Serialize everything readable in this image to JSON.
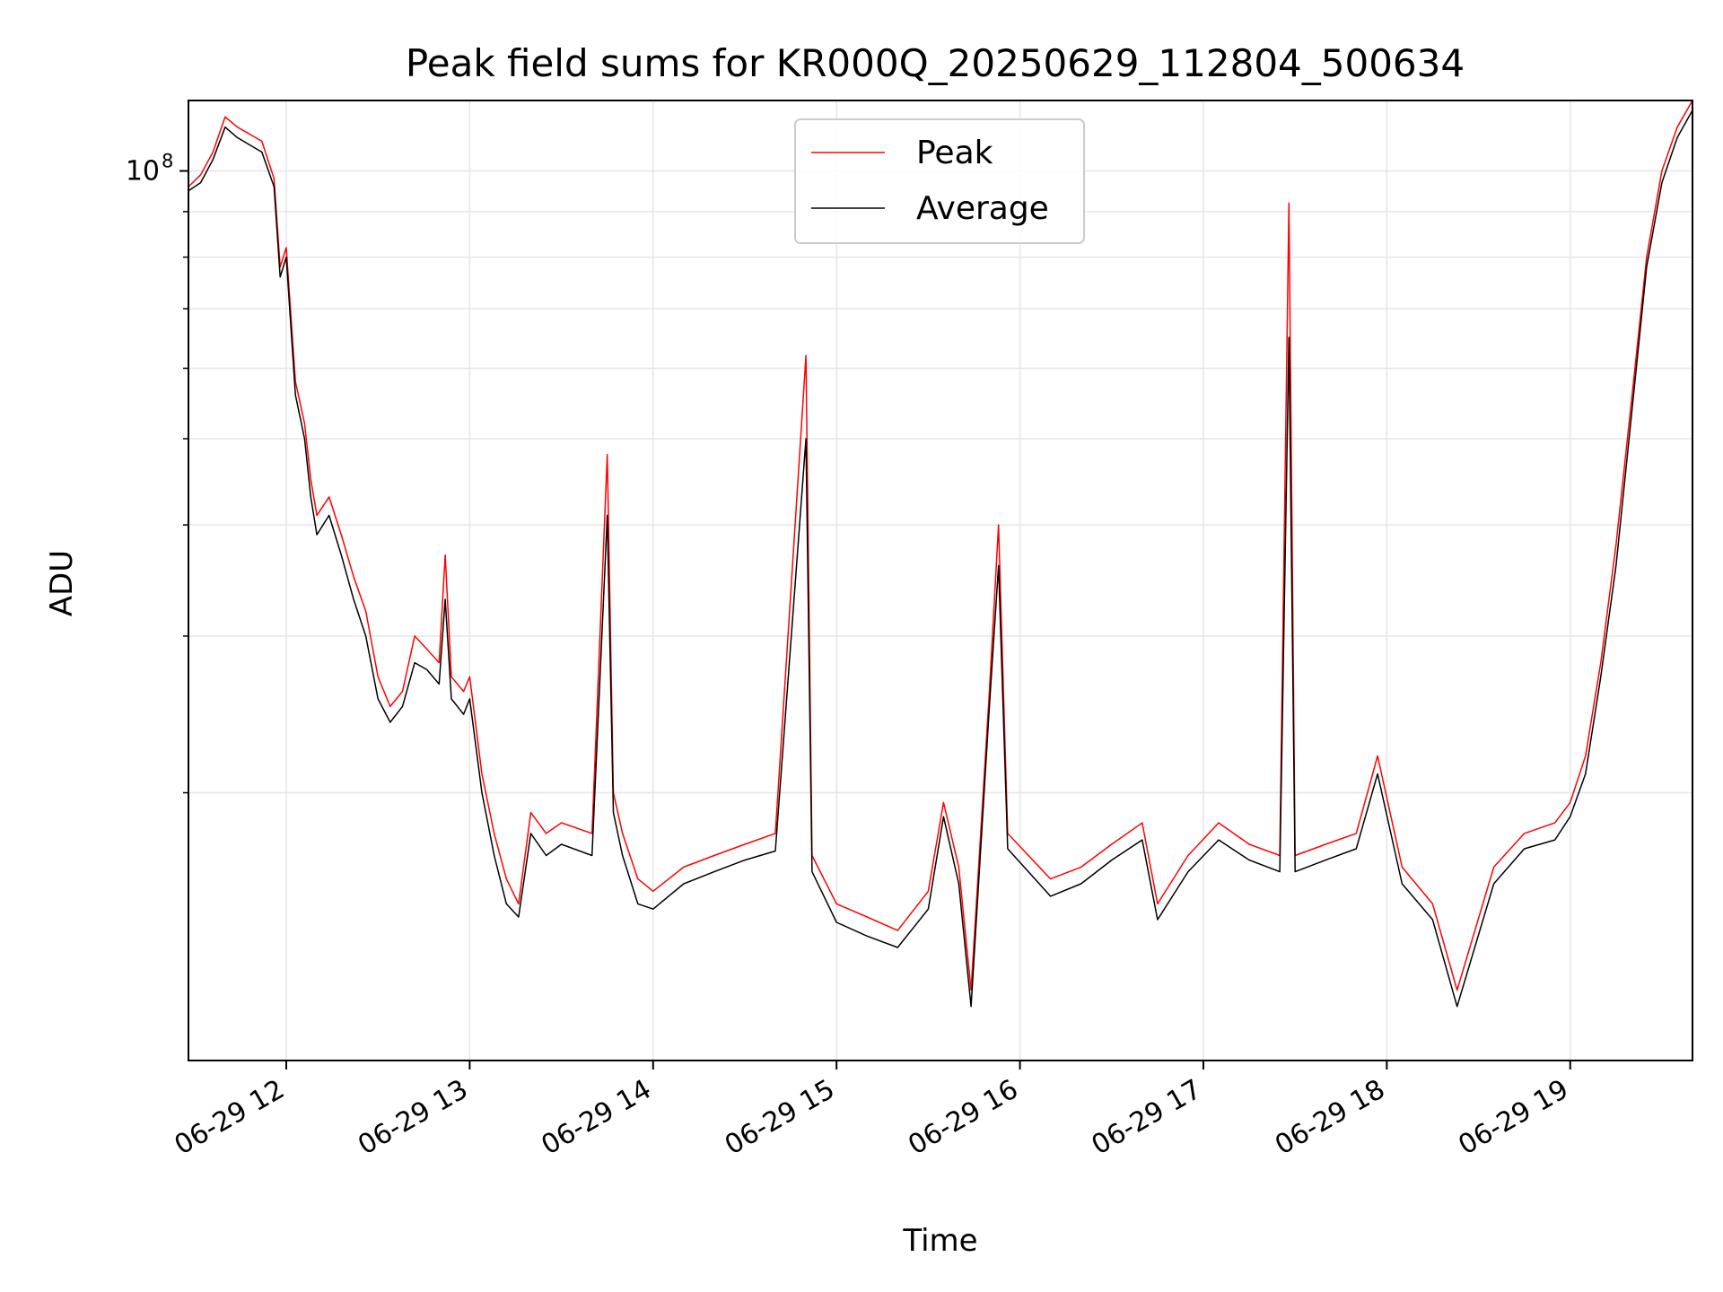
{
  "chart_data": {
    "type": "line",
    "title": "Peak field sums for KR000Q_20250629_112804_500634",
    "xlabel": "Time",
    "ylabel": "ADU",
    "x_range": [
      "2025-06-29 11:28",
      "2025-06-29 19:40"
    ],
    "x_tick_labels": [
      "06-29 12",
      "06-29 13",
      "06-29 14",
      "06-29 15",
      "06-29 16",
      "06-29 17",
      "06-29 18",
      "06-29 19"
    ],
    "y_scale": "log",
    "y_range": [
      10000000,
      120000000
    ],
    "y_tick_labels": [
      {
        "base": "10",
        "exp": "8",
        "value": 100000000
      }
    ],
    "y_minor_ticks": [
      20000000,
      30000000,
      40000000,
      50000000,
      60000000,
      70000000,
      80000000,
      90000000
    ],
    "grid": true,
    "legend_position": "upper-center",
    "colors": {
      "peak": "#ff0000",
      "average": "#000000",
      "grid": "#e6e6e6"
    },
    "series": [
      {
        "name": "Peak",
        "color": "#ff0000",
        "points": [
          [
            "2025-06-29 11:28",
            96000000
          ],
          [
            "2025-06-29 11:32",
            99000000
          ],
          [
            "2025-06-29 11:36",
            105000000
          ],
          [
            "2025-06-29 11:40",
            115000000
          ],
          [
            "2025-06-29 11:44",
            112000000
          ],
          [
            "2025-06-29 11:48",
            110000000
          ],
          [
            "2025-06-29 11:52",
            108000000
          ],
          [
            "2025-06-29 11:56",
            98000000
          ],
          [
            "2025-06-29 11:58",
            78000000
          ],
          [
            "2025-06-29 12:00",
            82000000
          ],
          [
            "2025-06-29 12:03",
            58000000
          ],
          [
            "2025-06-29 12:06",
            52000000
          ],
          [
            "2025-06-29 12:08",
            45000000
          ],
          [
            "2025-06-29 12:10",
            41000000
          ],
          [
            "2025-06-29 12:14",
            43000000
          ],
          [
            "2025-06-29 12:18",
            39000000
          ],
          [
            "2025-06-29 12:22",
            35000000
          ],
          [
            "2025-06-29 12:26",
            32000000
          ],
          [
            "2025-06-29 12:30",
            27000000
          ],
          [
            "2025-06-29 12:34",
            25000000
          ],
          [
            "2025-06-29 12:38",
            26000000
          ],
          [
            "2025-06-29 12:42",
            30000000
          ],
          [
            "2025-06-29 12:46",
            29000000
          ],
          [
            "2025-06-29 12:50",
            28000000
          ],
          [
            "2025-06-29 12:52",
            37000000
          ],
          [
            "2025-06-29 12:54",
            27000000
          ],
          [
            "2025-06-29 12:58",
            26000000
          ],
          [
            "2025-06-29 13:00",
            27000000
          ],
          [
            "2025-06-29 13:04",
            21000000
          ],
          [
            "2025-06-29 13:08",
            18000000
          ],
          [
            "2025-06-29 13:12",
            16000000
          ],
          [
            "2025-06-29 13:16",
            15000000
          ],
          [
            "2025-06-29 13:20",
            19000000
          ],
          [
            "2025-06-29 13:25",
            18000000
          ],
          [
            "2025-06-29 13:30",
            18500000
          ],
          [
            "2025-06-29 13:40",
            18000000
          ],
          [
            "2025-06-29 13:45",
            48000000
          ],
          [
            "2025-06-29 13:47",
            20000000
          ],
          [
            "2025-06-29 13:50",
            18000000
          ],
          [
            "2025-06-29 13:55",
            16000000
          ],
          [
            "2025-06-29 14:00",
            15500000
          ],
          [
            "2025-06-29 14:10",
            16500000
          ],
          [
            "2025-06-29 14:20",
            17000000
          ],
          [
            "2025-06-29 14:30",
            17500000
          ],
          [
            "2025-06-29 14:40",
            18000000
          ],
          [
            "2025-06-29 14:50",
            62000000
          ],
          [
            "2025-06-29 14:52",
            17000000
          ],
          [
            "2025-06-29 15:00",
            15000000
          ],
          [
            "2025-06-29 15:10",
            14500000
          ],
          [
            "2025-06-29 15:20",
            14000000
          ],
          [
            "2025-06-29 15:30",
            15500000
          ],
          [
            "2025-06-29 15:35",
            19500000
          ],
          [
            "2025-06-29 15:40",
            16500000
          ],
          [
            "2025-06-29 15:44",
            12000000
          ],
          [
            "2025-06-29 15:50",
            26000000
          ],
          [
            "2025-06-29 15:53",
            40000000
          ],
          [
            "2025-06-29 15:56",
            18000000
          ],
          [
            "2025-06-29 16:10",
            16000000
          ],
          [
            "2025-06-29 16:20",
            16500000
          ],
          [
            "2025-06-29 16:30",
            17500000
          ],
          [
            "2025-06-29 16:40",
            18500000
          ],
          [
            "2025-06-29 16:45",
            15000000
          ],
          [
            "2025-06-29 16:55",
            17000000
          ],
          [
            "2025-06-29 17:05",
            18500000
          ],
          [
            "2025-06-29 17:15",
            17500000
          ],
          [
            "2025-06-29 17:25",
            17000000
          ],
          [
            "2025-06-29 17:28",
            92000000
          ],
          [
            "2025-06-29 17:30",
            17000000
          ],
          [
            "2025-06-29 17:40",
            17500000
          ],
          [
            "2025-06-29 17:50",
            18000000
          ],
          [
            "2025-06-29 17:57",
            22000000
          ],
          [
            "2025-06-29 18:05",
            16500000
          ],
          [
            "2025-06-29 18:15",
            15000000
          ],
          [
            "2025-06-29 18:23",
            12000000
          ],
          [
            "2025-06-29 18:35",
            16500000
          ],
          [
            "2025-06-29 18:45",
            18000000
          ],
          [
            "2025-06-29 18:55",
            18500000
          ],
          [
            "2025-06-29 19:00",
            19500000
          ],
          [
            "2025-06-29 19:05",
            22000000
          ],
          [
            "2025-06-29 19:10",
            28000000
          ],
          [
            "2025-06-29 19:15",
            38000000
          ],
          [
            "2025-06-29 19:20",
            55000000
          ],
          [
            "2025-06-29 19:25",
            80000000
          ],
          [
            "2025-06-29 19:30",
            100000000
          ],
          [
            "2025-06-29 19:35",
            112000000
          ],
          [
            "2025-06-29 19:40",
            120000000
          ]
        ]
      },
      {
        "name": "Average",
        "color": "#000000",
        "points": [
          [
            "2025-06-29 11:28",
            95000000
          ],
          [
            "2025-06-29 11:32",
            97000000
          ],
          [
            "2025-06-29 11:36",
            103000000
          ],
          [
            "2025-06-29 11:40",
            112000000
          ],
          [
            "2025-06-29 11:44",
            109000000
          ],
          [
            "2025-06-29 11:48",
            107000000
          ],
          [
            "2025-06-29 11:52",
            105000000
          ],
          [
            "2025-06-29 11:56",
            96000000
          ],
          [
            "2025-06-29 11:58",
            76000000
          ],
          [
            "2025-06-29 12:00",
            80000000
          ],
          [
            "2025-06-29 12:03",
            56000000
          ],
          [
            "2025-06-29 12:06",
            50000000
          ],
          [
            "2025-06-29 12:08",
            43000000
          ],
          [
            "2025-06-29 12:10",
            39000000
          ],
          [
            "2025-06-29 12:14",
            41000000
          ],
          [
            "2025-06-29 12:18",
            37000000
          ],
          [
            "2025-06-29 12:22",
            33000000
          ],
          [
            "2025-06-29 12:26",
            30000000
          ],
          [
            "2025-06-29 12:30",
            25500000
          ],
          [
            "2025-06-29 12:34",
            24000000
          ],
          [
            "2025-06-29 12:38",
            25000000
          ],
          [
            "2025-06-29 12:42",
            28000000
          ],
          [
            "2025-06-29 12:46",
            27500000
          ],
          [
            "2025-06-29 12:50",
            26500000
          ],
          [
            "2025-06-29 12:52",
            33000000
          ],
          [
            "2025-06-29 12:54",
            25500000
          ],
          [
            "2025-06-29 12:58",
            24500000
          ],
          [
            "2025-06-29 13:00",
            25500000
          ],
          [
            "2025-06-29 13:04",
            20000000
          ],
          [
            "2025-06-29 13:08",
            17000000
          ],
          [
            "2025-06-29 13:12",
            15000000
          ],
          [
            "2025-06-29 13:16",
            14500000
          ],
          [
            "2025-06-29 13:20",
            18000000
          ],
          [
            "2025-06-29 13:25",
            17000000
          ],
          [
            "2025-06-29 13:30",
            17500000
          ],
          [
            "2025-06-29 13:40",
            17000000
          ],
          [
            "2025-06-29 13:45",
            41000000
          ],
          [
            "2025-06-29 13:47",
            19000000
          ],
          [
            "2025-06-29 13:50",
            17000000
          ],
          [
            "2025-06-29 13:55",
            15000000
          ],
          [
            "2025-06-29 14:00",
            14800000
          ],
          [
            "2025-06-29 14:10",
            15800000
          ],
          [
            "2025-06-29 14:20",
            16300000
          ],
          [
            "2025-06-29 14:30",
            16800000
          ],
          [
            "2025-06-29 14:40",
            17200000
          ],
          [
            "2025-06-29 14:50",
            50000000
          ],
          [
            "2025-06-29 14:52",
            16300000
          ],
          [
            "2025-06-29 15:00",
            14300000
          ],
          [
            "2025-06-29 15:10",
            13800000
          ],
          [
            "2025-06-29 15:20",
            13400000
          ],
          [
            "2025-06-29 15:30",
            14800000
          ],
          [
            "2025-06-29 15:35",
            18800000
          ],
          [
            "2025-06-29 15:40",
            15800000
          ],
          [
            "2025-06-29 15:44",
            11500000
          ],
          [
            "2025-06-29 15:50",
            25000000
          ],
          [
            "2025-06-29 15:53",
            36000000
          ],
          [
            "2025-06-29 15:56",
            17300000
          ],
          [
            "2025-06-29 16:10",
            15300000
          ],
          [
            "2025-06-29 16:20",
            15800000
          ],
          [
            "2025-06-29 16:30",
            16800000
          ],
          [
            "2025-06-29 16:40",
            17700000
          ],
          [
            "2025-06-29 16:45",
            14400000
          ],
          [
            "2025-06-29 16:55",
            16300000
          ],
          [
            "2025-06-29 17:05",
            17700000
          ],
          [
            "2025-06-29 17:15",
            16800000
          ],
          [
            "2025-06-29 17:25",
            16300000
          ],
          [
            "2025-06-29 17:28",
            65000000
          ],
          [
            "2025-06-29 17:30",
            16300000
          ],
          [
            "2025-06-29 17:40",
            16800000
          ],
          [
            "2025-06-29 17:50",
            17300000
          ],
          [
            "2025-06-29 17:57",
            21000000
          ],
          [
            "2025-06-29 18:05",
            15800000
          ],
          [
            "2025-06-29 18:15",
            14400000
          ],
          [
            "2025-06-29 18:23",
            11500000
          ],
          [
            "2025-06-29 18:35",
            15800000
          ],
          [
            "2025-06-29 18:45",
            17300000
          ],
          [
            "2025-06-29 18:55",
            17700000
          ],
          [
            "2025-06-29 19:00",
            18800000
          ],
          [
            "2025-06-29 19:05",
            21000000
          ],
          [
            "2025-06-29 19:10",
            27000000
          ],
          [
            "2025-06-29 19:15",
            36000000
          ],
          [
            "2025-06-29 19:20",
            53000000
          ],
          [
            "2025-06-29 19:25",
            78000000
          ],
          [
            "2025-06-29 19:30",
            97000000
          ],
          [
            "2025-06-29 19:35",
            109000000
          ],
          [
            "2025-06-29 19:40",
            117000000
          ]
        ]
      }
    ]
  }
}
